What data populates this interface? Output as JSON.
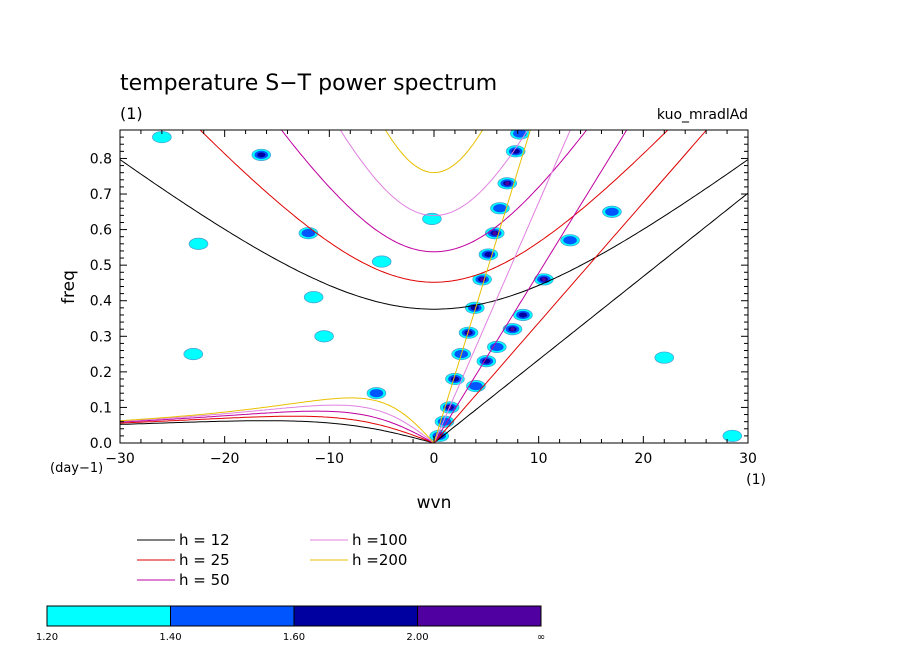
{
  "chart_data": {
    "type": "contour",
    "title": "temperature S−T power spectrum",
    "subtitle_left": "(1)",
    "subtitle_right": "kuo_mradlAd",
    "xlabel": "wvn",
    "ylabel": "freq",
    "x_unit": "(1)",
    "y_unit": "(day−1)",
    "xlim": [
      -30,
      30
    ],
    "ylim": [
      0,
      0.88
    ],
    "x_ticks": [
      -30,
      -20,
      -10,
      0,
      10,
      20,
      30
    ],
    "x_tick_labels": [
      "−30",
      "−20",
      "−10",
      "0",
      "10",
      "20",
      "30"
    ],
    "y_ticks": [
      0,
      0.1,
      0.2,
      0.3,
      0.4,
      0.5,
      0.6,
      0.7,
      0.8
    ],
    "y_tick_labels": [
      "0.0",
      "0.1",
      "0.2",
      "0.3",
      "0.4",
      "0.5",
      "0.6",
      "0.7",
      "0.8"
    ],
    "dispersion_curves": [
      {
        "label": "h = 12",
        "h": 12,
        "color": "#000000"
      },
      {
        "label": "h = 25",
        "h": 25,
        "color": "#e00000"
      },
      {
        "label": "h = 50",
        "h": 50,
        "color": "#c000a0"
      },
      {
        "label": "h =100",
        "h": 100,
        "color": "#e080e0"
      },
      {
        "label": "h =200",
        "h": 200,
        "color": "#e8c000"
      }
    ],
    "colorbar": {
      "boundaries": [
        "1.20",
        "1.40",
        "1.60",
        "2.00",
        "∞"
      ],
      "colors": [
        "#00ffff",
        "#0055ff",
        "#0000a0",
        "#5000a0"
      ]
    },
    "power_features": [
      {
        "x": 0.5,
        "y": 0.02,
        "v": 2.1
      },
      {
        "x": 1.0,
        "y": 0.06,
        "v": 1.5
      },
      {
        "x": 1.5,
        "y": 0.1,
        "v": 2.1
      },
      {
        "x": 2.0,
        "y": 0.18,
        "v": 1.7
      },
      {
        "x": 2.6,
        "y": 0.25,
        "v": 1.5
      },
      {
        "x": 3.3,
        "y": 0.31,
        "v": 2.1
      },
      {
        "x": 3.9,
        "y": 0.38,
        "v": 1.7
      },
      {
        "x": 4.6,
        "y": 0.46,
        "v": 2.1
      },
      {
        "x": 5.2,
        "y": 0.53,
        "v": 1.7
      },
      {
        "x": 5.8,
        "y": 0.59,
        "v": 2.1
      },
      {
        "x": 6.3,
        "y": 0.66,
        "v": 1.5
      },
      {
        "x": 7.0,
        "y": 0.73,
        "v": 2.1
      },
      {
        "x": 7.8,
        "y": 0.82,
        "v": 1.7
      },
      {
        "x": 8.2,
        "y": 0.87,
        "v": 1.5
      },
      {
        "x": 4.0,
        "y": 0.16,
        "v": 1.5
      },
      {
        "x": 5.0,
        "y": 0.23,
        "v": 1.7
      },
      {
        "x": 6.0,
        "y": 0.27,
        "v": 1.5
      },
      {
        "x": 7.5,
        "y": 0.32,
        "v": 2.1
      },
      {
        "x": 8.5,
        "y": 0.36,
        "v": 1.7
      },
      {
        "x": 10.5,
        "y": 0.46,
        "v": 2.1
      },
      {
        "x": 13.0,
        "y": 0.57,
        "v": 1.5
      },
      {
        "x": 17.0,
        "y": 0.65,
        "v": 1.5
      },
      {
        "x": -16.5,
        "y": 0.81,
        "v": 1.7
      },
      {
        "x": -12.0,
        "y": 0.59,
        "v": 1.5
      },
      {
        "x": -11.5,
        "y": 0.41,
        "v": 1.3
      },
      {
        "x": -10.5,
        "y": 0.3,
        "v": 1.3
      },
      {
        "x": -5.5,
        "y": 0.14,
        "v": 1.5
      },
      {
        "x": -0.2,
        "y": 0.63,
        "v": 1.3
      },
      {
        "x": -26.0,
        "y": 0.86,
        "v": 1.3
      },
      {
        "x": -22.5,
        "y": 0.56,
        "v": 1.3
      },
      {
        "x": -23.0,
        "y": 0.25,
        "v": 1.3
      },
      {
        "x": -5.0,
        "y": 0.51,
        "v": 1.3
      },
      {
        "x": 22.0,
        "y": 0.24,
        "v": 1.3
      },
      {
        "x": 28.5,
        "y": 0.02,
        "v": 1.3
      }
    ]
  }
}
